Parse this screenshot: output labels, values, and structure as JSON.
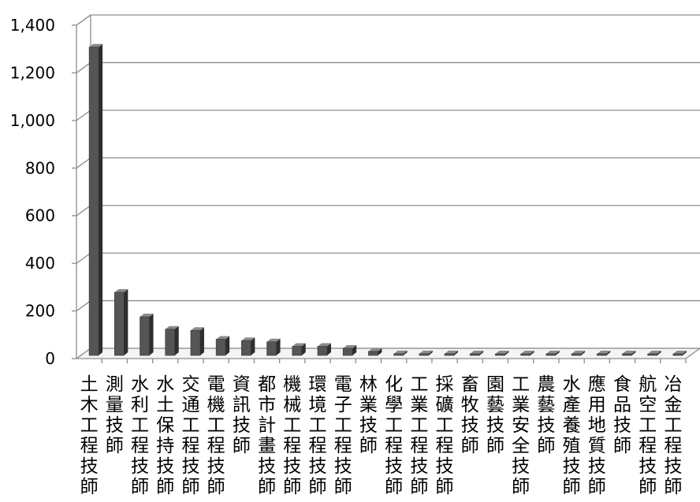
{
  "chart_data": {
    "type": "bar",
    "title": "",
    "xlabel": "",
    "ylabel": "",
    "ylim": [
      0,
      1400
    ],
    "yticks": [
      "0",
      "200",
      "400",
      "600",
      "800",
      "1,000",
      "1,200",
      "1,400"
    ],
    "grid": true,
    "categories": [
      "土木工程技師",
      "測量技師",
      "水利工程技師",
      "水土保持技師",
      "交通工程技師",
      "電機工程技師",
      "資訊技師",
      "都市計畫技師",
      "機械工程技師",
      "環境工程技師",
      "電子工程技師",
      "林業技師",
      "化學工程技師",
      "工業工程技師",
      "採礦工程技師",
      "畜牧技師",
      "園藝技師",
      "工業安全技師",
      "農藝技師",
      "水產養殖技師",
      "應用地質技師",
      "食品技師",
      "航空工程技師",
      "冶金工程技師"
    ],
    "values": [
      1295,
      265,
      162,
      110,
      105,
      68,
      62,
      57,
      38,
      38,
      30,
      17,
      7,
      7,
      7,
      6,
      6,
      6,
      6,
      5,
      4,
      3,
      3,
      3
    ],
    "bar_color": "#555555"
  }
}
